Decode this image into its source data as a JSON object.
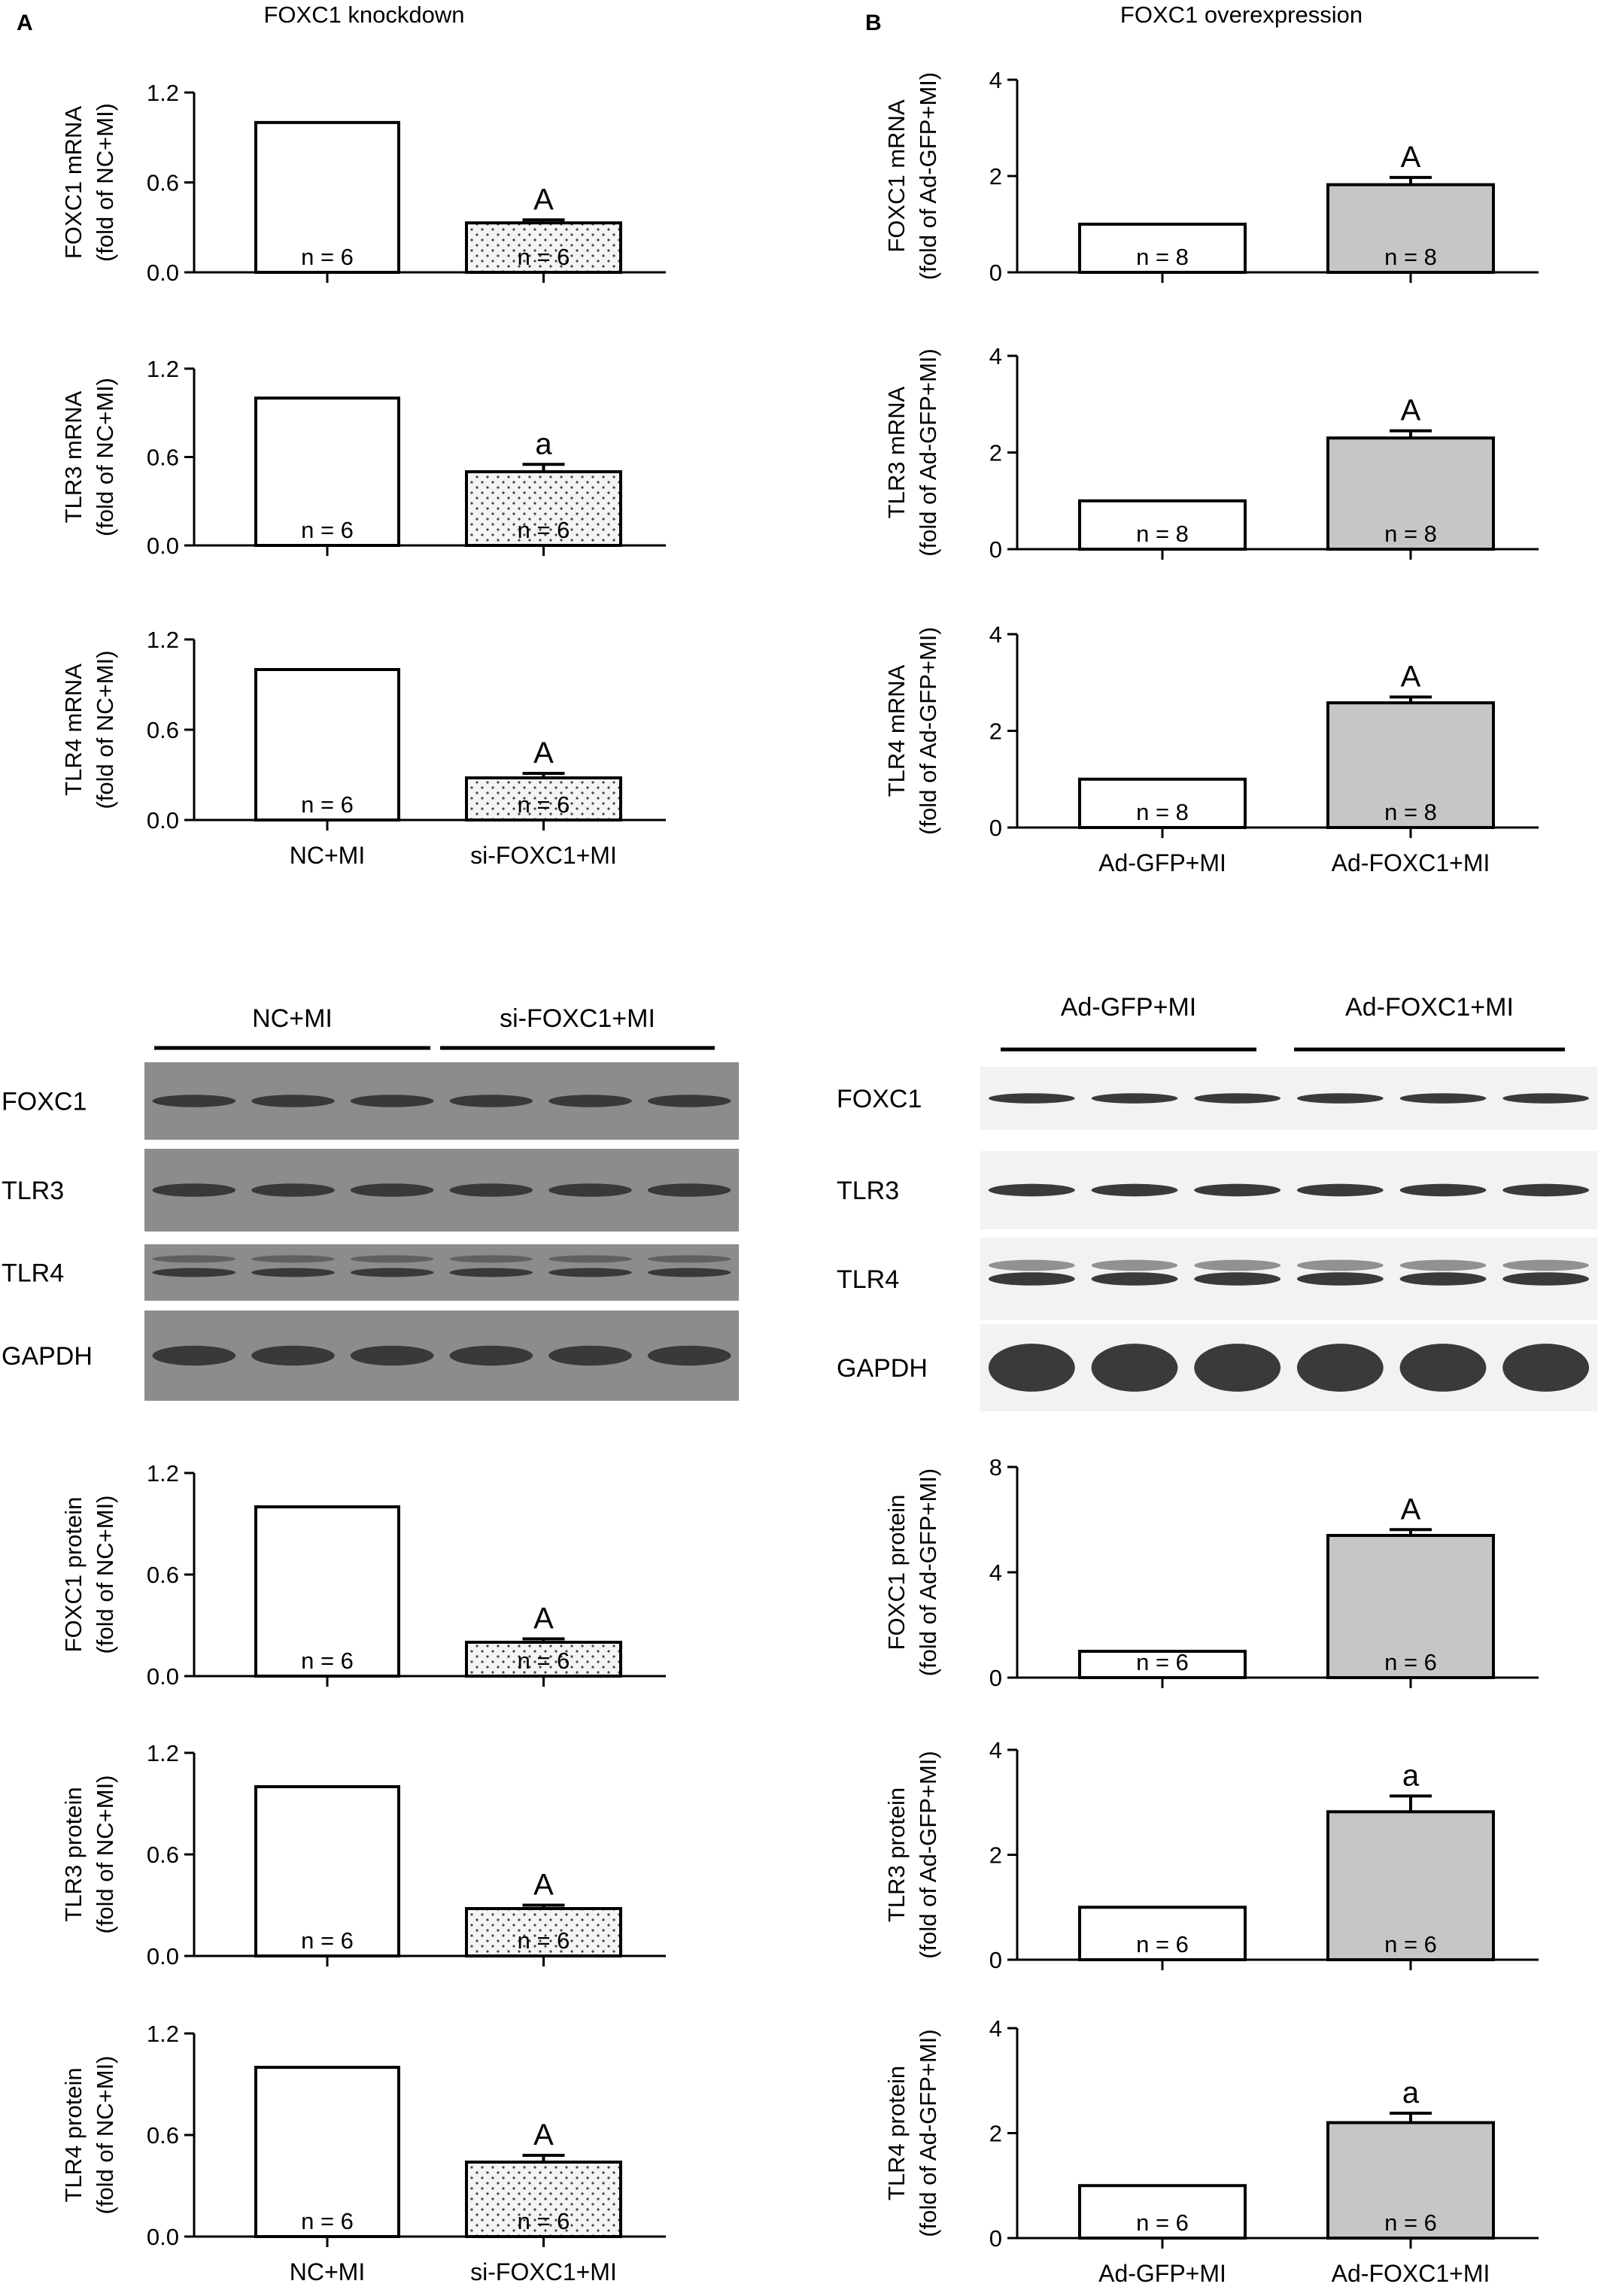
{
  "panels": {
    "a_label": "A",
    "b_label": "B",
    "a_title": "FOXC1 knockdown",
    "b_title": "FOXC1 overexpression"
  },
  "blots": [
    {
      "id": "blot-left",
      "groups": [
        "NC+MI",
        "si-FOXC1+MI"
      ],
      "rows": [
        "FOXC1",
        "TLR3",
        "TLR4",
        "GAPDH"
      ],
      "background": "#8c8c8c",
      "band_color": "#2a2a2a"
    },
    {
      "id": "blot-right",
      "groups": [
        "Ad-GFP+MI",
        "Ad-FOXC1+MI"
      ],
      "rows": [
        "FOXC1",
        "TLR3",
        "TLR4",
        "GAPDH"
      ],
      "background": "#f2f2f2",
      "band_color": "#1a1a1a"
    }
  ],
  "colors": {
    "control_bar": "#ffffff",
    "knockdown_bar": "#f4f4f4",
    "overexpression_bar": "#c6c6c6",
    "stroke": "#000000"
  },
  "chart_data": [
    {
      "id": "a-foxc1-mrna",
      "type": "bar",
      "ylabel": [
        "FOXC1 mRNA",
        "(fold of NC+MI)"
      ],
      "yticks": [
        "0.0",
        "0.6",
        "1.2"
      ],
      "ylim": [
        0,
        1.2
      ],
      "categories": [
        "NC+MI",
        "si-FOXC1+MI"
      ],
      "values": [
        1.0,
        0.33
      ],
      "errors": [
        0,
        0.02
      ],
      "n_labels": [
        "n = 6",
        "n = 6"
      ],
      "sig": [
        "",
        "A"
      ],
      "fill": [
        "control",
        "dotted"
      ],
      "show_xlabels": false
    },
    {
      "id": "a-tlr3-mrna",
      "type": "bar",
      "ylabel": [
        "TLR3 mRNA",
        "(fold of NC+MI)"
      ],
      "yticks": [
        "0.0",
        "0.6",
        "1.2"
      ],
      "ylim": [
        0,
        1.2
      ],
      "categories": [
        "NC+MI",
        "si-FOXC1+MI"
      ],
      "values": [
        1.0,
        0.5
      ],
      "errors": [
        0,
        0.05
      ],
      "n_labels": [
        "n = 6",
        "n = 6"
      ],
      "sig": [
        "",
        "a"
      ],
      "fill": [
        "control",
        "dotted"
      ],
      "show_xlabels": false
    },
    {
      "id": "a-tlr4-mrna",
      "type": "bar",
      "ylabel": [
        "TLR4 mRNA",
        "(fold of NC+MI)"
      ],
      "yticks": [
        "0.0",
        "0.6",
        "1.2"
      ],
      "ylim": [
        0,
        1.2
      ],
      "categories": [
        "NC+MI",
        "si-FOXC1+MI"
      ],
      "values": [
        1.0,
        0.28
      ],
      "errors": [
        0,
        0.03
      ],
      "n_labels": [
        "n = 6",
        "n = 6"
      ],
      "sig": [
        "",
        "A"
      ],
      "fill": [
        "control",
        "dotted"
      ],
      "show_xlabels": true
    },
    {
      "id": "b-foxc1-mrna",
      "type": "bar",
      "ylabel": [
        "FOXC1 mRNA",
        "(fold of Ad-GFP+MI)"
      ],
      "yticks": [
        "0",
        "2",
        "4"
      ],
      "ylim": [
        0,
        4
      ],
      "categories": [
        "Ad-GFP+MI",
        "Ad-FOXC1+MI"
      ],
      "values": [
        1.0,
        1.82
      ],
      "errors": [
        0,
        0.15
      ],
      "n_labels": [
        "n = 8",
        "n = 8"
      ],
      "sig": [
        "",
        "A"
      ],
      "fill": [
        "control",
        "gray"
      ],
      "show_xlabels": false
    },
    {
      "id": "b-tlr3-mrna",
      "type": "bar",
      "ylabel": [
        "TLR3 mRNA",
        "(fold of Ad-GFP+MI)"
      ],
      "yticks": [
        "0",
        "2",
        "4"
      ],
      "ylim": [
        0,
        4
      ],
      "categories": [
        "Ad-GFP+MI",
        "Ad-FOXC1+MI"
      ],
      "values": [
        1.0,
        2.3
      ],
      "errors": [
        0,
        0.15
      ],
      "n_labels": [
        "n = 8",
        "n = 8"
      ],
      "sig": [
        "",
        "A"
      ],
      "fill": [
        "control",
        "gray"
      ],
      "show_xlabels": false
    },
    {
      "id": "b-tlr4-mrna",
      "type": "bar",
      "ylabel": [
        "TLR4 mRNA",
        "(fold of Ad-GFP+MI)"
      ],
      "yticks": [
        "0",
        "2",
        "4"
      ],
      "ylim": [
        0,
        4
      ],
      "categories": [
        "Ad-GFP+MI",
        "Ad-FOXC1+MI"
      ],
      "values": [
        1.0,
        2.58
      ],
      "errors": [
        0,
        0.12
      ],
      "n_labels": [
        "n = 8",
        "n = 8"
      ],
      "sig": [
        "",
        "A"
      ],
      "fill": [
        "control",
        "gray"
      ],
      "show_xlabels": true
    },
    {
      "id": "a-foxc1-protein",
      "type": "bar",
      "ylabel": [
        "FOXC1 protein",
        "(fold of NC+MI)"
      ],
      "yticks": [
        "0.0",
        "0.6",
        "1.2"
      ],
      "ylim": [
        0,
        1.2
      ],
      "categories": [
        "NC+MI",
        "si-FOXC1+MI"
      ],
      "values": [
        1.0,
        0.2
      ],
      "errors": [
        0,
        0.02
      ],
      "n_labels": [
        "n = 6",
        "n = 6"
      ],
      "sig": [
        "",
        "A"
      ],
      "fill": [
        "control",
        "dotted"
      ],
      "show_xlabels": false
    },
    {
      "id": "a-tlr3-protein",
      "type": "bar",
      "ylabel": [
        "TLR3 protein",
        "(fold of NC+MI)"
      ],
      "yticks": [
        "0.0",
        "0.6",
        "1.2"
      ],
      "ylim": [
        0,
        1.2
      ],
      "categories": [
        "NC+MI",
        "si-FOXC1+MI"
      ],
      "values": [
        1.0,
        0.28
      ],
      "errors": [
        0,
        0.02
      ],
      "n_labels": [
        "n = 6",
        "n = 6"
      ],
      "sig": [
        "",
        "A"
      ],
      "fill": [
        "control",
        "dotted"
      ],
      "show_xlabels": false
    },
    {
      "id": "a-tlr4-protein",
      "type": "bar",
      "ylabel": [
        "TLR4 protein",
        "(fold of NC+MI)"
      ],
      "yticks": [
        "0.0",
        "0.6",
        "1.2"
      ],
      "ylim": [
        0,
        1.2
      ],
      "categories": [
        "NC+MI",
        "si-FOXC1+MI"
      ],
      "values": [
        1.0,
        0.44
      ],
      "errors": [
        0,
        0.04
      ],
      "n_labels": [
        "n = 6",
        "n = 6"
      ],
      "sig": [
        "",
        "A"
      ],
      "fill": [
        "control",
        "dotted"
      ],
      "show_xlabels": true
    },
    {
      "id": "b-foxc1-protein",
      "type": "bar",
      "ylabel": [
        "FOXC1 protein",
        "(fold of Ad-GFP+MI)"
      ],
      "yticks": [
        "0",
        "4",
        "8"
      ],
      "ylim": [
        0,
        8
      ],
      "categories": [
        "Ad-GFP+MI",
        "Ad-FOXC1+MI"
      ],
      "values": [
        1.0,
        5.4
      ],
      "errors": [
        0,
        0.22
      ],
      "n_labels": [
        "n = 6",
        "n = 6"
      ],
      "sig": [
        "",
        "A"
      ],
      "fill": [
        "control",
        "gray"
      ],
      "show_xlabels": false
    },
    {
      "id": "b-tlr3-protein",
      "type": "bar",
      "ylabel": [
        "TLR3 protein",
        "(fold of Ad-GFP+MI)"
      ],
      "yticks": [
        "0",
        "2",
        "4"
      ],
      "ylim": [
        0,
        4
      ],
      "categories": [
        "Ad-GFP+MI",
        "Ad-FOXC1+MI"
      ],
      "values": [
        1.0,
        2.82
      ],
      "errors": [
        0,
        0.3
      ],
      "n_labels": [
        "n = 6",
        "n = 6"
      ],
      "sig": [
        "",
        "a"
      ],
      "fill": [
        "control",
        "gray"
      ],
      "show_xlabels": false
    },
    {
      "id": "b-tlr4-protein",
      "type": "bar",
      "ylabel": [
        "TLR4 protein",
        "(fold of Ad-GFP+MI)"
      ],
      "yticks": [
        "0",
        "2",
        "4"
      ],
      "ylim": [
        0,
        4
      ],
      "categories": [
        "Ad-GFP+MI",
        "Ad-FOXC1+MI"
      ],
      "values": [
        1.0,
        2.2
      ],
      "errors": [
        0,
        0.18
      ],
      "n_labels": [
        "n = 6",
        "n = 6"
      ],
      "sig": [
        "",
        "a"
      ],
      "fill": [
        "control",
        "gray"
      ],
      "show_xlabels": true
    }
  ]
}
